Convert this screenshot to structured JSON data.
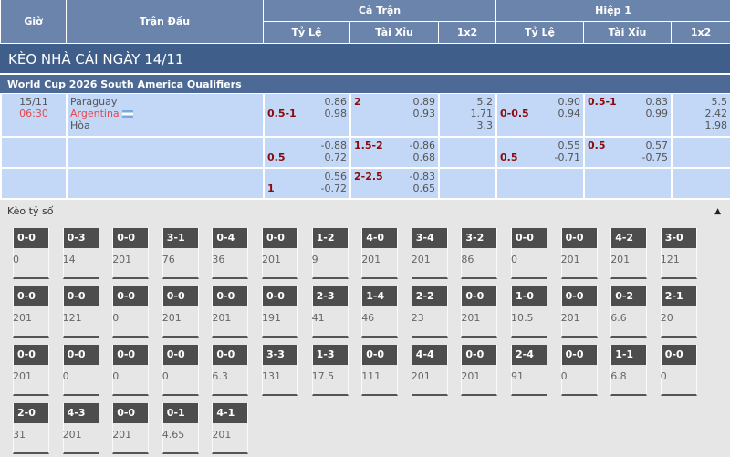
{
  "header": {
    "gio": "Giờ",
    "tran_dau": "Trận Đấu",
    "ca_tran": "Cả Trận",
    "hiep1": "Hiệp 1",
    "ty_le": "Tỷ Lệ",
    "tai_xiu": "Tài Xỉu",
    "x12": "1x2"
  },
  "title": "KÈO NHÀ CÁI NGÀY 14/11",
  "league": "World Cup 2026 South America Qualifiers",
  "match": {
    "date": "15/11",
    "time": "06:30",
    "home": "Paraguay",
    "away": "Argentina",
    "draw": "Hòa",
    "flag": "argentina-flag-icon"
  },
  "rows": [
    {
      "ft_hdp": "0.5-1",
      "ft_hdp_odds": [
        "0.86",
        "0.98"
      ],
      "ft_ou": "2",
      "ft_ou_odds": [
        "0.89",
        "0.93"
      ],
      "ft_1x2": [
        "5.2",
        "1.71",
        "3.3"
      ],
      "h1_hdp": "0-0.5",
      "h1_hdp_odds": [
        "0.90",
        "0.94"
      ],
      "h1_ou": "0.5-1",
      "h1_ou_odds": [
        "0.83",
        "0.99"
      ],
      "h1_1x2": [
        "5.5",
        "2.42",
        "1.98"
      ]
    },
    {
      "ft_hdp": "0.5",
      "ft_hdp_odds": [
        "-0.88",
        "0.72"
      ],
      "ft_ou": "1.5-2",
      "ft_ou_odds": [
        "-0.86",
        "0.68"
      ],
      "h1_hdp": "0.5",
      "h1_hdp_odds": [
        "0.55",
        "-0.71"
      ],
      "h1_ou": "0.5",
      "h1_ou_odds": [
        "0.57",
        "-0.75"
      ]
    },
    {
      "ft_hdp": "1",
      "ft_hdp_odds": [
        "0.56",
        "-0.72"
      ],
      "ft_ou": "2-2.5",
      "ft_ou_odds": [
        "-0.83",
        "0.65"
      ]
    }
  ],
  "score_section": {
    "label": "Kèo tỷ số",
    "toggle_icon": "caret-up-icon"
  },
  "scores": [
    {
      "s": "0-0",
      "v": "0"
    },
    {
      "s": "0-3",
      "v": "14"
    },
    {
      "s": "0-0",
      "v": "201"
    },
    {
      "s": "3-1",
      "v": "76"
    },
    {
      "s": "0-4",
      "v": "36"
    },
    {
      "s": "0-0",
      "v": "201"
    },
    {
      "s": "1-2",
      "v": "9"
    },
    {
      "s": "4-0",
      "v": "201"
    },
    {
      "s": "3-4",
      "v": "201"
    },
    {
      "s": "3-2",
      "v": "86"
    },
    {
      "s": "0-0",
      "v": "0"
    },
    {
      "s": "0-0",
      "v": "201"
    },
    {
      "s": "4-2",
      "v": "201"
    },
    {
      "s": "3-0",
      "v": "121"
    },
    {
      "s": "0-0",
      "v": "201"
    },
    {
      "s": "0-0",
      "v": "121"
    },
    {
      "s": "0-0",
      "v": "0"
    },
    {
      "s": "0-0",
      "v": "201"
    },
    {
      "s": "0-0",
      "v": "201"
    },
    {
      "s": "0-0",
      "v": "191"
    },
    {
      "s": "2-3",
      "v": "41"
    },
    {
      "s": "1-4",
      "v": "46"
    },
    {
      "s": "2-2",
      "v": "23"
    },
    {
      "s": "0-0",
      "v": "201"
    },
    {
      "s": "1-0",
      "v": "10.5"
    },
    {
      "s": "0-0",
      "v": "201"
    },
    {
      "s": "0-2",
      "v": "6.6"
    },
    {
      "s": "2-1",
      "v": "20"
    },
    {
      "s": "0-0",
      "v": "201"
    },
    {
      "s": "0-0",
      "v": "0"
    },
    {
      "s": "0-0",
      "v": "0"
    },
    {
      "s": "0-0",
      "v": "0"
    },
    {
      "s": "0-0",
      "v": "6.3"
    },
    {
      "s": "3-3",
      "v": "131"
    },
    {
      "s": "1-3",
      "v": "17.5"
    },
    {
      "s": "0-0",
      "v": "111"
    },
    {
      "s": "4-4",
      "v": "201"
    },
    {
      "s": "0-0",
      "v": "201"
    },
    {
      "s": "2-4",
      "v": "91"
    },
    {
      "s": "0-0",
      "v": "0"
    },
    {
      "s": "1-1",
      "v": "6.8"
    },
    {
      "s": "0-0",
      "v": "0"
    },
    {
      "s": "2-0",
      "v": "31"
    },
    {
      "s": "4-3",
      "v": "201"
    },
    {
      "s": "0-0",
      "v": "201"
    },
    {
      "s": "0-1",
      "v": "4.65"
    },
    {
      "s": "4-1",
      "v": "201"
    }
  ]
}
